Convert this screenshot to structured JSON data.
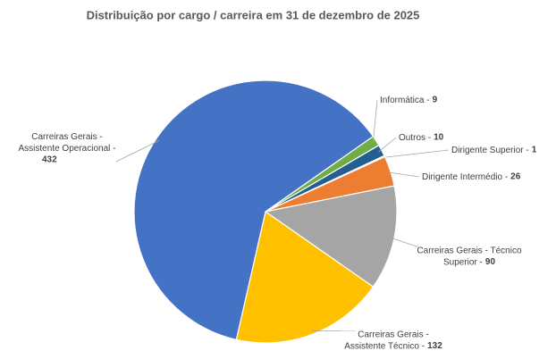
{
  "chart_data": {
    "type": "pie",
    "title": "Distribuição por cargo / carreira em 31 de dezembro de 2025",
    "categories": [
      "Informática -",
      "Outros -",
      "Dirigente Superior -",
      "Dirigente Intermédio -",
      "Carreiras Gerais - Técnico Superior -",
      "Carreiras Gerais - Assistente Técnico -",
      "Carreiras Gerais - Assistente Operacional -"
    ],
    "values": [
      9,
      10,
      1,
      26,
      90,
      132,
      432
    ],
    "colors": [
      "#70ad47",
      "#255e91",
      "#264478",
      "#ed7d31",
      "#a5a5a5",
      "#ffc000",
      "#4472c4"
    ]
  }
}
